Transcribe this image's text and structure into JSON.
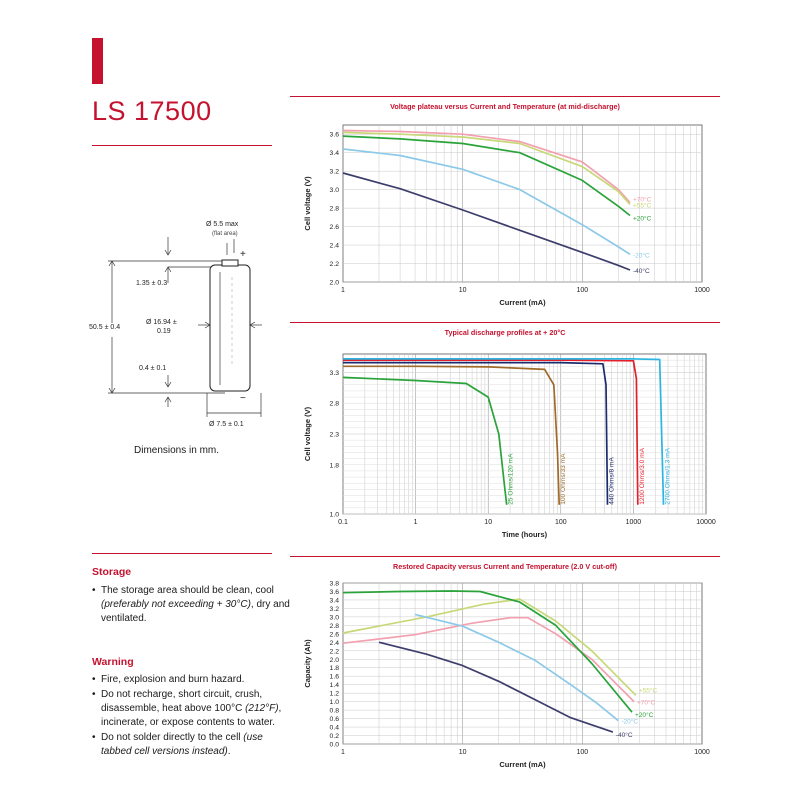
{
  "header": {
    "model": "LS 17500"
  },
  "dimensions": {
    "top_dia": "Ø 5.5 max",
    "top_dia_note": "(flat area)",
    "plus": "+",
    "minus": "−",
    "height_top": "1.35 ± 0.3",
    "length": "50.5 ± 0.4",
    "dia_a": "Ø 16.94 ±",
    "dia_b": "0.19",
    "height_bottom": "0.4 ± 0.1",
    "bottom_dia": "Ø 7.5 ± 0.1",
    "caption": "Dimensions in mm."
  },
  "storage": {
    "title": "Storage",
    "b1_pre": "The storage area should be clean, cool ",
    "b1_italic": "(preferably not exceeding + 30°C)",
    "b1_post": ", dry and ventilated."
  },
  "warning": {
    "title": "Warning",
    "b1": "Fire, explosion and burn hazard.",
    "b2_pre": "Do not recharge, short circuit, crush, disassemble, heat above 100°C ",
    "b2_italic": "(212°F)",
    "b2_post": ", incinerate, or expose contents to water.",
    "b3_pre": "Do not solder directly to the cell ",
    "b3_italic": "(use tabbed cell versions instead)",
    "b3_post": "."
  },
  "chart_data": [
    {
      "type": "line",
      "title": "Voltage plateau versus Current and Temperature (at mid-discharge)",
      "xlabel": "Current (mA)",
      "ylabel": "Cell voltage (V)",
      "xscale": "log",
      "xlim": [
        1,
        1000
      ],
      "ylim": [
        2.0,
        3.7
      ],
      "xticks": [
        "1",
        "10",
        "100",
        "1000"
      ],
      "yticks": [
        "2.0",
        "2.2",
        "2.4",
        "2.6",
        "2.8",
        "3.0",
        "3.2",
        "3.4",
        "3.6"
      ],
      "grid": true,
      "series": [
        {
          "name": "+70°C",
          "color": "#f2a0b0",
          "x": [
            1,
            3,
            10,
            30,
            100,
            200,
            250
          ],
          "y": [
            3.64,
            3.63,
            3.6,
            3.52,
            3.3,
            3.0,
            2.86
          ]
        },
        {
          "name": "+55°C",
          "color": "#c8d878",
          "x": [
            1,
            3,
            10,
            30,
            100,
            200,
            250
          ],
          "y": [
            3.62,
            3.6,
            3.57,
            3.5,
            3.25,
            2.98,
            2.84
          ]
        },
        {
          "name": "+20°C",
          "color": "#2aa33a",
          "x": [
            1,
            3,
            10,
            30,
            100,
            200,
            250
          ],
          "y": [
            3.58,
            3.55,
            3.5,
            3.4,
            3.1,
            2.82,
            2.72
          ]
        },
        {
          "name": "-20°C",
          "color": "#8cc9e8",
          "x": [
            1,
            3,
            10,
            30,
            100,
            200,
            250
          ],
          "y": [
            3.44,
            3.37,
            3.22,
            3.0,
            2.62,
            2.38,
            2.3
          ]
        },
        {
          "name": "-40°C",
          "color": "#3d3d6b",
          "x": [
            1,
            3,
            10,
            30,
            100,
            200,
            250
          ],
          "y": [
            3.18,
            3.01,
            2.78,
            2.56,
            2.32,
            2.18,
            2.13
          ]
        }
      ]
    },
    {
      "type": "line",
      "title": "Typical discharge profiles at + 20°C",
      "xlabel": "Time (hours)",
      "ylabel": "Cell voltage (V)",
      "xscale": "log",
      "xlim": [
        0.1,
        10000
      ],
      "ylim": [
        1.0,
        3.6
      ],
      "xticks": [
        "0.1",
        "1",
        "10",
        "100",
        "1000",
        "10000"
      ],
      "yticks": [
        "1.0",
        "1.8",
        "2.3",
        "2.8",
        "3.3"
      ],
      "grid": true,
      "series": [
        {
          "name": "25 Ohms/120 mA",
          "color": "#2aa33a",
          "x": [
            0.1,
            1,
            5,
            10,
            14,
            17,
            18
          ],
          "y": [
            3.22,
            3.17,
            3.12,
            2.9,
            2.3,
            1.4,
            1.15
          ]
        },
        {
          "name": "100 Ohms/33 mA",
          "color": "#a06a28",
          "x": [
            0.1,
            1,
            10,
            60,
            80,
            90,
            95
          ],
          "y": [
            3.4,
            3.4,
            3.39,
            3.35,
            3.1,
            2.0,
            1.15
          ]
        },
        {
          "name": "440 Ohms/8 mA",
          "color": "#1c2a6e",
          "x": [
            0.1,
            10,
            100,
            380,
            420,
            440
          ],
          "y": [
            3.46,
            3.46,
            3.46,
            3.44,
            3.1,
            1.15
          ]
        },
        {
          "name": "1200 Ohms/3.0 mA",
          "color": "#e41e2a",
          "x": [
            0.1,
            10,
            100,
            1000,
            1100,
            1150
          ],
          "y": [
            3.5,
            3.5,
            3.5,
            3.49,
            3.2,
            1.15
          ]
        },
        {
          "name": "2700 Ohms/1.3 mA",
          "color": "#2bb5e0",
          "x": [
            0.1,
            10,
            100,
            1000,
            2300,
            2600
          ],
          "y": [
            3.52,
            3.52,
            3.52,
            3.52,
            3.51,
            1.15
          ]
        }
      ]
    },
    {
      "type": "line",
      "title": "Restored Capacity versus Current and Temperature (2.0 V cut-off)",
      "xlabel": "Current (mA)",
      "ylabel": "Capacity (Ah)",
      "xscale": "log",
      "xlim": [
        1,
        1000
      ],
      "ylim": [
        0.0,
        3.8
      ],
      "xticks": [
        "1",
        "10",
        "100",
        "1000"
      ],
      "yticks": [
        "0.0",
        "0.2",
        "0.4",
        "0.6",
        "0.8",
        "1.0",
        "1.2",
        "1.4",
        "1.6",
        "1.8",
        "2.0",
        "2.2",
        "2.4",
        "2.6",
        "2.8",
        "3.0",
        "3.2",
        "3.4",
        "3.6",
        "3.8"
      ],
      "grid": true,
      "series": [
        {
          "name": "+55°C",
          "color": "#c8d878",
          "x": [
            1,
            5,
            15,
            30,
            60,
            120,
            280
          ],
          "y": [
            2.62,
            3.0,
            3.3,
            3.42,
            2.9,
            2.2,
            1.15
          ]
        },
        {
          "name": "+70°C",
          "color": "#f2a0b0",
          "x": [
            1,
            4,
            12,
            25,
            35,
            60,
            120,
            270
          ],
          "y": [
            2.38,
            2.58,
            2.85,
            2.98,
            2.98,
            2.6,
            2.0,
            1.0
          ]
        },
        {
          "name": "+20°C",
          "color": "#2aa33a",
          "x": [
            1,
            3,
            8,
            14,
            30,
            60,
            120,
            260
          ],
          "y": [
            3.57,
            3.6,
            3.61,
            3.6,
            3.35,
            2.8,
            1.9,
            0.75
          ]
        },
        {
          "name": "-20°C",
          "color": "#8cc9e8",
          "x": [
            4,
            10,
            20,
            40,
            80,
            130,
            200
          ],
          "y": [
            3.06,
            2.78,
            2.4,
            1.98,
            1.4,
            0.98,
            0.55
          ]
        },
        {
          "name": "-40°C",
          "color": "#3d3d6b",
          "x": [
            2,
            5,
            10,
            20,
            40,
            80,
            180
          ],
          "y": [
            2.4,
            2.12,
            1.85,
            1.48,
            1.05,
            0.62,
            0.28
          ]
        }
      ]
    }
  ]
}
